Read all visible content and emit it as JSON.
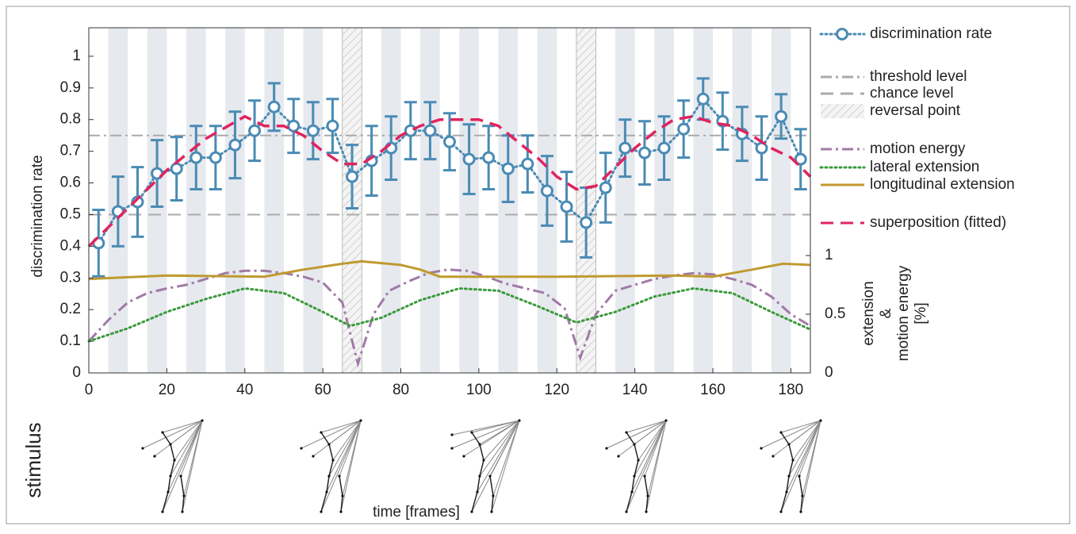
{
  "chart_data": {
    "type": "line",
    "ylabel": "discrimination rate",
    "xlabel": "time [frames]",
    "y2label_lines": [
      "extension",
      "&",
      "motion energy",
      "[%]"
    ],
    "side_label": "stimulus",
    "xlim": [
      0,
      185
    ],
    "xticks": [
      0,
      20,
      40,
      60,
      80,
      100,
      120,
      140,
      160,
      180
    ],
    "ylim": [
      0,
      1.09
    ],
    "yticks": [
      0,
      0.1,
      0.2,
      0.3,
      0.4,
      0.5,
      0.6,
      0.7,
      0.8,
      0.9,
      1
    ],
    "y2lim": [
      0,
      2.94
    ],
    "y2ticks": [
      0,
      0.5,
      1
    ],
    "shaded_bands": [
      [
        5,
        10
      ],
      [
        15,
        20
      ],
      [
        25,
        30
      ],
      [
        35,
        40
      ],
      [
        45,
        50
      ],
      [
        55,
        60
      ],
      [
        75,
        80
      ],
      [
        85,
        90
      ],
      [
        95,
        100
      ],
      [
        105,
        110
      ],
      [
        115,
        120
      ],
      [
        135,
        140
      ],
      [
        145,
        150
      ],
      [
        155,
        160
      ],
      [
        165,
        170
      ],
      [
        175,
        180
      ]
    ],
    "band_color": "#e6e9ee",
    "reversal": {
      "name": "reversal point",
      "ranges": [
        [
          65,
          70
        ],
        [
          125,
          130
        ]
      ],
      "color": "#bbbbbb"
    },
    "reference_lines": [
      {
        "name": "threshold level",
        "value": 0.75,
        "style": "dashdot",
        "color": "#aaaaaa"
      },
      {
        "name": "chance level",
        "value": 0.5,
        "style": "dashed",
        "color": "#aaaaaa"
      }
    ],
    "series": [
      {
        "name": "discrimination rate",
        "color": "#4a8bb5",
        "style": "dotted",
        "markers": true,
        "x": [
          2.5,
          7.5,
          12.5,
          17.5,
          22.5,
          27.5,
          32.5,
          37.5,
          42.5,
          47.5,
          52.5,
          57.5,
          62.5,
          67.5,
          72.5,
          77.5,
          82.5,
          87.5,
          92.5,
          97.5,
          102.5,
          107.5,
          112.5,
          117.5,
          122.5,
          127.5,
          132.5,
          137.5,
          142.5,
          147.5,
          152.5,
          157.5,
          162.5,
          167.5,
          172.5,
          177.5,
          182.5
        ],
        "values": [
          0.41,
          0.51,
          0.54,
          0.63,
          0.645,
          0.68,
          0.68,
          0.72,
          0.765,
          0.84,
          0.78,
          0.765,
          0.78,
          0.62,
          0.67,
          0.71,
          0.765,
          0.765,
          0.73,
          0.675,
          0.68,
          0.645,
          0.66,
          0.575,
          0.525,
          0.475,
          0.585,
          0.71,
          0.695,
          0.71,
          0.77,
          0.865,
          0.795,
          0.755,
          0.71,
          0.81,
          0.675
        ],
        "errors": [
          0.105,
          0.11,
          0.11,
          0.105,
          0.1,
          0.1,
          0.1,
          0.105,
          0.095,
          0.075,
          0.085,
          0.09,
          0.085,
          0.1,
          0.11,
          0.1,
          0.09,
          0.09,
          0.09,
          0.11,
          0.1,
          0.105,
          0.09,
          0.11,
          0.11,
          0.11,
          0.11,
          0.09,
          0.1,
          0.1,
          0.09,
          0.065,
          0.09,
          0.085,
          0.1,
          0.07,
          0.095
        ]
      },
      {
        "name": "superposition (fitted)",
        "color": "#e0245e",
        "style": "dashed",
        "x": [
          0,
          10,
          20,
          30,
          40,
          45,
          50,
          55,
          60,
          65,
          70,
          75,
          80,
          85,
          90,
          95,
          100,
          105,
          110,
          115,
          120,
          125,
          130,
          135,
          140,
          145,
          150,
          155,
          160,
          165,
          170,
          175,
          180,
          185
        ],
        "values": [
          0.4,
          0.52,
          0.64,
          0.74,
          0.81,
          0.78,
          0.78,
          0.75,
          0.7,
          0.66,
          0.66,
          0.7,
          0.75,
          0.78,
          0.8,
          0.8,
          0.8,
          0.78,
          0.73,
          0.68,
          0.62,
          0.58,
          0.59,
          0.65,
          0.71,
          0.76,
          0.8,
          0.81,
          0.79,
          0.78,
          0.75,
          0.71,
          0.68,
          0.62
        ]
      },
      {
        "name": "motion energy",
        "color": "#a07aa6",
        "style": "dashdot",
        "axis": "y2",
        "x": [
          0,
          5,
          10,
          15,
          20,
          25,
          30,
          35,
          40,
          45,
          50,
          55,
          60,
          65,
          69,
          73,
          77,
          82,
          87,
          92,
          97,
          102,
          107,
          112,
          117,
          122,
          126,
          130,
          135,
          140,
          145,
          150,
          155,
          160,
          165,
          170,
          175,
          180,
          185
        ],
        "values": [
          0.27,
          0.45,
          0.6,
          0.68,
          0.72,
          0.75,
          0.8,
          0.85,
          0.87,
          0.87,
          0.85,
          0.82,
          0.77,
          0.6,
          0.08,
          0.5,
          0.7,
          0.78,
          0.85,
          0.88,
          0.87,
          0.82,
          0.76,
          0.72,
          0.68,
          0.55,
          0.13,
          0.5,
          0.7,
          0.75,
          0.8,
          0.83,
          0.85,
          0.84,
          0.8,
          0.75,
          0.65,
          0.5,
          0.4
        ]
      },
      {
        "name": "lateral extension",
        "color": "#3a9a3a",
        "style": "dotted",
        "axis": "y2",
        "x": [
          0,
          10,
          20,
          30,
          40,
          50,
          60,
          67,
          75,
          85,
          95,
          105,
          115,
          125,
          135,
          145,
          155,
          165,
          175,
          185
        ],
        "values": [
          0.27,
          0.38,
          0.52,
          0.63,
          0.72,
          0.68,
          0.52,
          0.4,
          0.47,
          0.62,
          0.72,
          0.7,
          0.57,
          0.43,
          0.52,
          0.65,
          0.72,
          0.68,
          0.52,
          0.37
        ]
      },
      {
        "name": "longitudinal extension",
        "color": "#c09a30",
        "style": "solid",
        "axis": "y2",
        "x": [
          0,
          20,
          45,
          55,
          65,
          70,
          80,
          85,
          90,
          120,
          150,
          160,
          170,
          178,
          185
        ],
        "values": [
          0.8,
          0.83,
          0.82,
          0.88,
          0.93,
          0.95,
          0.92,
          0.88,
          0.82,
          0.82,
          0.83,
          0.82,
          0.88,
          0.93,
          0.92
        ]
      }
    ]
  }
}
